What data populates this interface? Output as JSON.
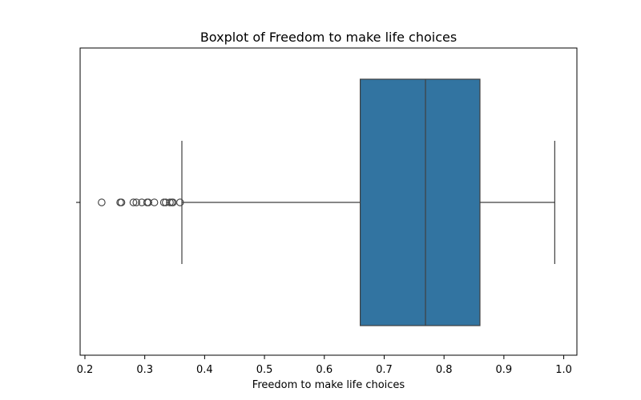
{
  "chart_data": {
    "type": "boxplot",
    "title": "Boxplot of Freedom to make life choices",
    "xlabel": "Freedom to make life choices",
    "ylabel": "",
    "xlim": [
      0.192,
      1.022
    ],
    "xticks": [
      0.2,
      0.3,
      0.4,
      0.5,
      0.6,
      0.7,
      0.8,
      0.9,
      1.0
    ],
    "xtick_labels": [
      "0.2",
      "0.3",
      "0.4",
      "0.5",
      "0.6",
      "0.7",
      "0.8",
      "0.9",
      "1.0"
    ],
    "grid": false,
    "orientation": "horizontal",
    "box": {
      "q1": 0.66,
      "median": 0.769,
      "q3": 0.86,
      "whisker_low": 0.362,
      "whisker_high": 0.985,
      "color": "#3274a1",
      "edge_color": "#3f3f3f"
    },
    "outliers": [
      0.228,
      0.259,
      0.261,
      0.281,
      0.286,
      0.295,
      0.304,
      0.306,
      0.316,
      0.332,
      0.335,
      0.342,
      0.345,
      0.347,
      0.359
    ]
  }
}
